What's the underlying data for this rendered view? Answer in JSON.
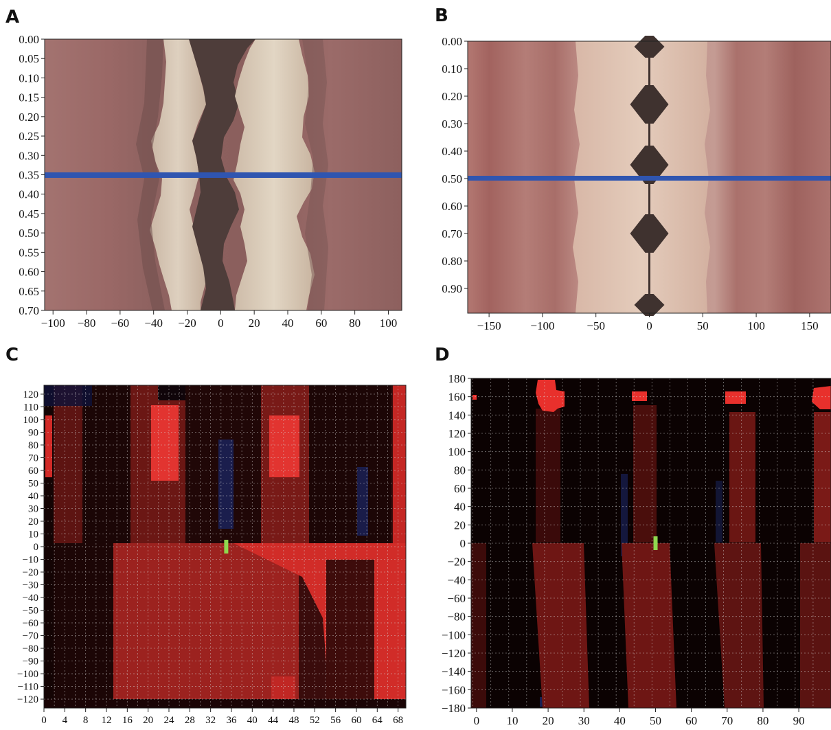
{
  "panels": [
    {
      "letter": "A"
    },
    {
      "letter": "B"
    },
    {
      "letter": "C"
    },
    {
      "letter": "D"
    }
  ],
  "chart_data": [
    {
      "panel": "A",
      "type": "heatmap",
      "description_colors": {
        "skin": "#9e6b68",
        "band_light": "#d6c8b4",
        "band_dark": "#4e3d3a",
        "marker_line": "#2f55b0"
      },
      "xlim": [
        -105,
        108
      ],
      "ylim": [
        0.0,
        0.7
      ],
      "y_inverted": true,
      "xticks": [
        -100,
        -80,
        -60,
        -40,
        -20,
        0,
        20,
        40,
        60,
        80,
        100
      ],
      "yticks": [
        0.0,
        0.05,
        0.1,
        0.15,
        0.2,
        0.25,
        0.3,
        0.35,
        0.4,
        0.45,
        0.5,
        0.55,
        0.6,
        0.65,
        0.7
      ],
      "ytick_labels": [
        "0.00",
        "0.05",
        "0.10",
        "0.15",
        "0.20",
        "0.25",
        "0.30",
        "0.35",
        "0.40",
        "0.45",
        "0.50",
        "0.55",
        "0.60",
        "0.65",
        "0.70"
      ],
      "marker_line_y": 0.35
    },
    {
      "panel": "B",
      "type": "heatmap",
      "description_colors": {
        "skin": "#a66e69",
        "band_light": "#dcc6b2",
        "band_dark": "#3f322f",
        "marker_line": "#2f55b0"
      },
      "xlim": [
        -170,
        170
      ],
      "ylim": [
        0.0,
        0.99
      ],
      "y_inverted": true,
      "xticks": [
        -150,
        -100,
        -50,
        0,
        50,
        100,
        150
      ],
      "yticks": [
        0.0,
        0.1,
        0.2,
        0.3,
        0.4,
        0.5,
        0.6,
        0.7,
        0.8,
        0.9
      ],
      "ytick_labels": [
        "0.00",
        "0.10",
        "0.20",
        "0.30",
        "0.40",
        "0.50",
        "0.60",
        "0.70",
        "0.80",
        "0.90"
      ],
      "marker_line_y": 0.5
    },
    {
      "panel": "C",
      "type": "heatmap",
      "description_colors": {
        "base": "#3a0c0c",
        "bright_red": "#e8302c",
        "mid_red": "#8e1f1c",
        "dark": "#170505",
        "blue": "#1a2766",
        "marker": "#8fd94f"
      },
      "xlim": [
        0,
        69.5
      ],
      "ylim": [
        -127,
        127
      ],
      "xticks": [
        0,
        4,
        8,
        12,
        16,
        20,
        24,
        28,
        32,
        36,
        40,
        44,
        48,
        52,
        56,
        60,
        64,
        68
      ],
      "yticks": [
        120,
        110,
        100,
        90,
        80,
        70,
        60,
        50,
        40,
        30,
        20,
        10,
        0,
        -10,
        -20,
        -30,
        -40,
        -50,
        -60,
        -70,
        -80,
        -90,
        -100,
        -110,
        -120
      ],
      "marker_point": {
        "x": 35,
        "y": 0
      }
    },
    {
      "panel": "D",
      "type": "heatmap",
      "description_colors": {
        "base": "#0b0202",
        "bright_red": "#e8302c",
        "mid_red": "#6e1614",
        "blue": "#1a2766",
        "marker": "#8fd94f"
      },
      "xlim": [
        -1.5,
        99
      ],
      "ylim": [
        -180,
        180
      ],
      "xticks": [
        0,
        10,
        20,
        30,
        40,
        50,
        60,
        70,
        80,
        90
      ],
      "yticks": [
        180,
        160,
        140,
        120,
        100,
        80,
        60,
        40,
        20,
        0,
        -20,
        -40,
        -60,
        -80,
        -100,
        -120,
        -140,
        -160,
        -180
      ],
      "marker_point": {
        "x": 50,
        "y": 0
      }
    }
  ]
}
